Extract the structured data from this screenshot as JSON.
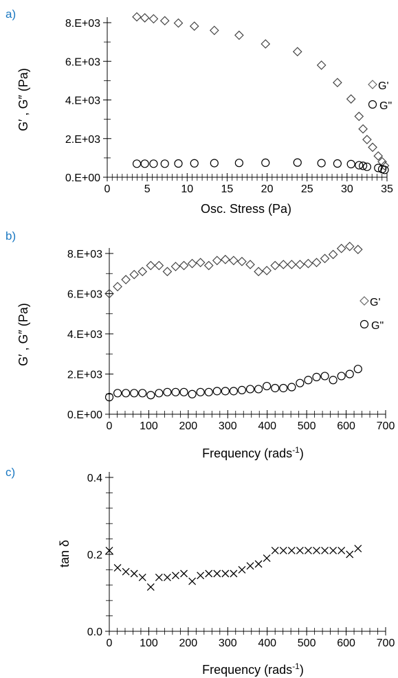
{
  "chart_data": [
    {
      "type": "scatter",
      "panel_label": "a)",
      "title": "",
      "xlabel": "Osc. Stress (Pa)",
      "ylabel": "G′ , G″ (Pa)",
      "xlim": [
        0,
        35
      ],
      "ylim": [
        0,
        8000
      ],
      "x_ticks": [
        0,
        5,
        10,
        15,
        20,
        25,
        30,
        35
      ],
      "x_tick_labels": [
        "0",
        "5",
        "10",
        "15",
        "20",
        "25",
        "30",
        "35"
      ],
      "y_ticks": [
        0,
        2000,
        4000,
        6000,
        8000
      ],
      "y_tick_labels": [
        "0.E+00",
        "2.E+03",
        "4.E+03",
        "6.E+03",
        "8.E+03"
      ],
      "grid": false,
      "legend_position": "right",
      "series": [
        {
          "name": "G'",
          "marker": "diamond",
          "x": [
            3.7,
            4.7,
            5.8,
            7.2,
            8.9,
            10.9,
            13.4,
            16.5,
            19.8,
            23.8,
            26.8,
            28.8,
            30.5,
            31.5,
            32.0,
            32.5,
            33.2,
            33.9,
            34.4,
            34.7
          ],
          "y": [
            8300,
            8250,
            8200,
            8100,
            7980,
            7820,
            7600,
            7350,
            6900,
            6500,
            5800,
            4900,
            4050,
            3150,
            2500,
            1950,
            1550,
            1100,
            800,
            600
          ]
        },
        {
          "name": "G\"",
          "marker": "circle",
          "x": [
            3.7,
            4.7,
            5.8,
            7.2,
            8.9,
            10.9,
            13.4,
            16.5,
            19.8,
            23.8,
            26.8,
            28.8,
            30.5,
            31.5,
            32.0,
            32.5,
            33.9,
            34.4,
            34.7
          ],
          "y": [
            700,
            700,
            700,
            700,
            710,
            720,
            730,
            740,
            750,
            760,
            730,
            710,
            680,
            620,
            590,
            540,
            480,
            420,
            380
          ]
        }
      ]
    },
    {
      "type": "scatter",
      "panel_label": "b)",
      "title": "",
      "xlabel": "Frequency (rads",
      "xlabel_sup": "-1",
      "xlabel_close": ")",
      "ylabel": "G′ , G″ (Pa)",
      "xlim": [
        0,
        700
      ],
      "ylim": [
        0,
        8000
      ],
      "x_ticks": [
        0,
        100,
        200,
        300,
        400,
        500,
        600,
        700
      ],
      "x_tick_labels": [
        "0",
        "100",
        "200",
        "300",
        "400",
        "500",
        "600",
        "700"
      ],
      "y_ticks": [
        0,
        2000,
        4000,
        6000,
        8000
      ],
      "y_tick_labels": [
        "0.E+00",
        "2.E+03",
        "4.E+03",
        "6.E+03",
        "8.E+03"
      ],
      "grid": false,
      "legend_position": "right",
      "series": [
        {
          "name": "G'",
          "marker": "diamond",
          "x": [
            0,
            21,
            42,
            63,
            84,
            105,
            126,
            147,
            168,
            189,
            210,
            231,
            252,
            273,
            294,
            315,
            336,
            357,
            378,
            399,
            420,
            441,
            462,
            483,
            504,
            525,
            546,
            567,
            588,
            609,
            630
          ],
          "y": [
            6000,
            6350,
            6700,
            6950,
            7100,
            7400,
            7400,
            7100,
            7350,
            7400,
            7500,
            7550,
            7400,
            7650,
            7700,
            7650,
            7600,
            7450,
            7100,
            7150,
            7400,
            7450,
            7450,
            7450,
            7500,
            7550,
            7750,
            7950,
            8250,
            8350,
            8200
          ]
        },
        {
          "name": "G\"",
          "marker": "circle",
          "x": [
            0,
            21,
            42,
            63,
            84,
            105,
            126,
            147,
            168,
            189,
            210,
            231,
            252,
            273,
            294,
            315,
            336,
            357,
            378,
            399,
            420,
            441,
            462,
            483,
            504,
            525,
            546,
            567,
            588,
            609,
            630
          ],
          "y": [
            850,
            1050,
            1050,
            1050,
            1050,
            950,
            1050,
            1100,
            1100,
            1100,
            1000,
            1100,
            1100,
            1150,
            1150,
            1150,
            1200,
            1250,
            1250,
            1400,
            1300,
            1300,
            1350,
            1550,
            1700,
            1850,
            1900,
            1700,
            1900,
            2000,
            2250
          ]
        }
      ]
    },
    {
      "type": "scatter",
      "panel_label": "c)",
      "title": "",
      "xlabel": "Frequency (rads",
      "xlabel_sup": "-1",
      "xlabel_close": ")",
      "ylabel": "tan δ",
      "xlim": [
        0,
        700
      ],
      "ylim": [
        0,
        0.4
      ],
      "x_ticks": [
        0,
        100,
        200,
        300,
        400,
        500,
        600,
        700
      ],
      "x_tick_labels": [
        "0",
        "100",
        "200",
        "300",
        "400",
        "500",
        "600",
        "700"
      ],
      "y_ticks": [
        0,
        0.2,
        0.4
      ],
      "y_tick_labels": [
        "0.0",
        "0.2",
        "0.4"
      ],
      "grid": false,
      "series": [
        {
          "marker": "x",
          "x": [
            0,
            21,
            42,
            63,
            84,
            105,
            126,
            147,
            168,
            189,
            210,
            231,
            252,
            273,
            294,
            315,
            336,
            357,
            378,
            399,
            420,
            441,
            462,
            483,
            504,
            525,
            546,
            567,
            588,
            609,
            630
          ],
          "y": [
            0.21,
            0.165,
            0.155,
            0.15,
            0.14,
            0.115,
            0.14,
            0.14,
            0.145,
            0.15,
            0.13,
            0.145,
            0.15,
            0.15,
            0.15,
            0.15,
            0.16,
            0.17,
            0.175,
            0.19,
            0.21,
            0.21,
            0.21,
            0.21,
            0.21,
            0.21,
            0.21,
            0.21,
            0.21,
            0.2,
            0.215
          ]
        }
      ]
    }
  ]
}
